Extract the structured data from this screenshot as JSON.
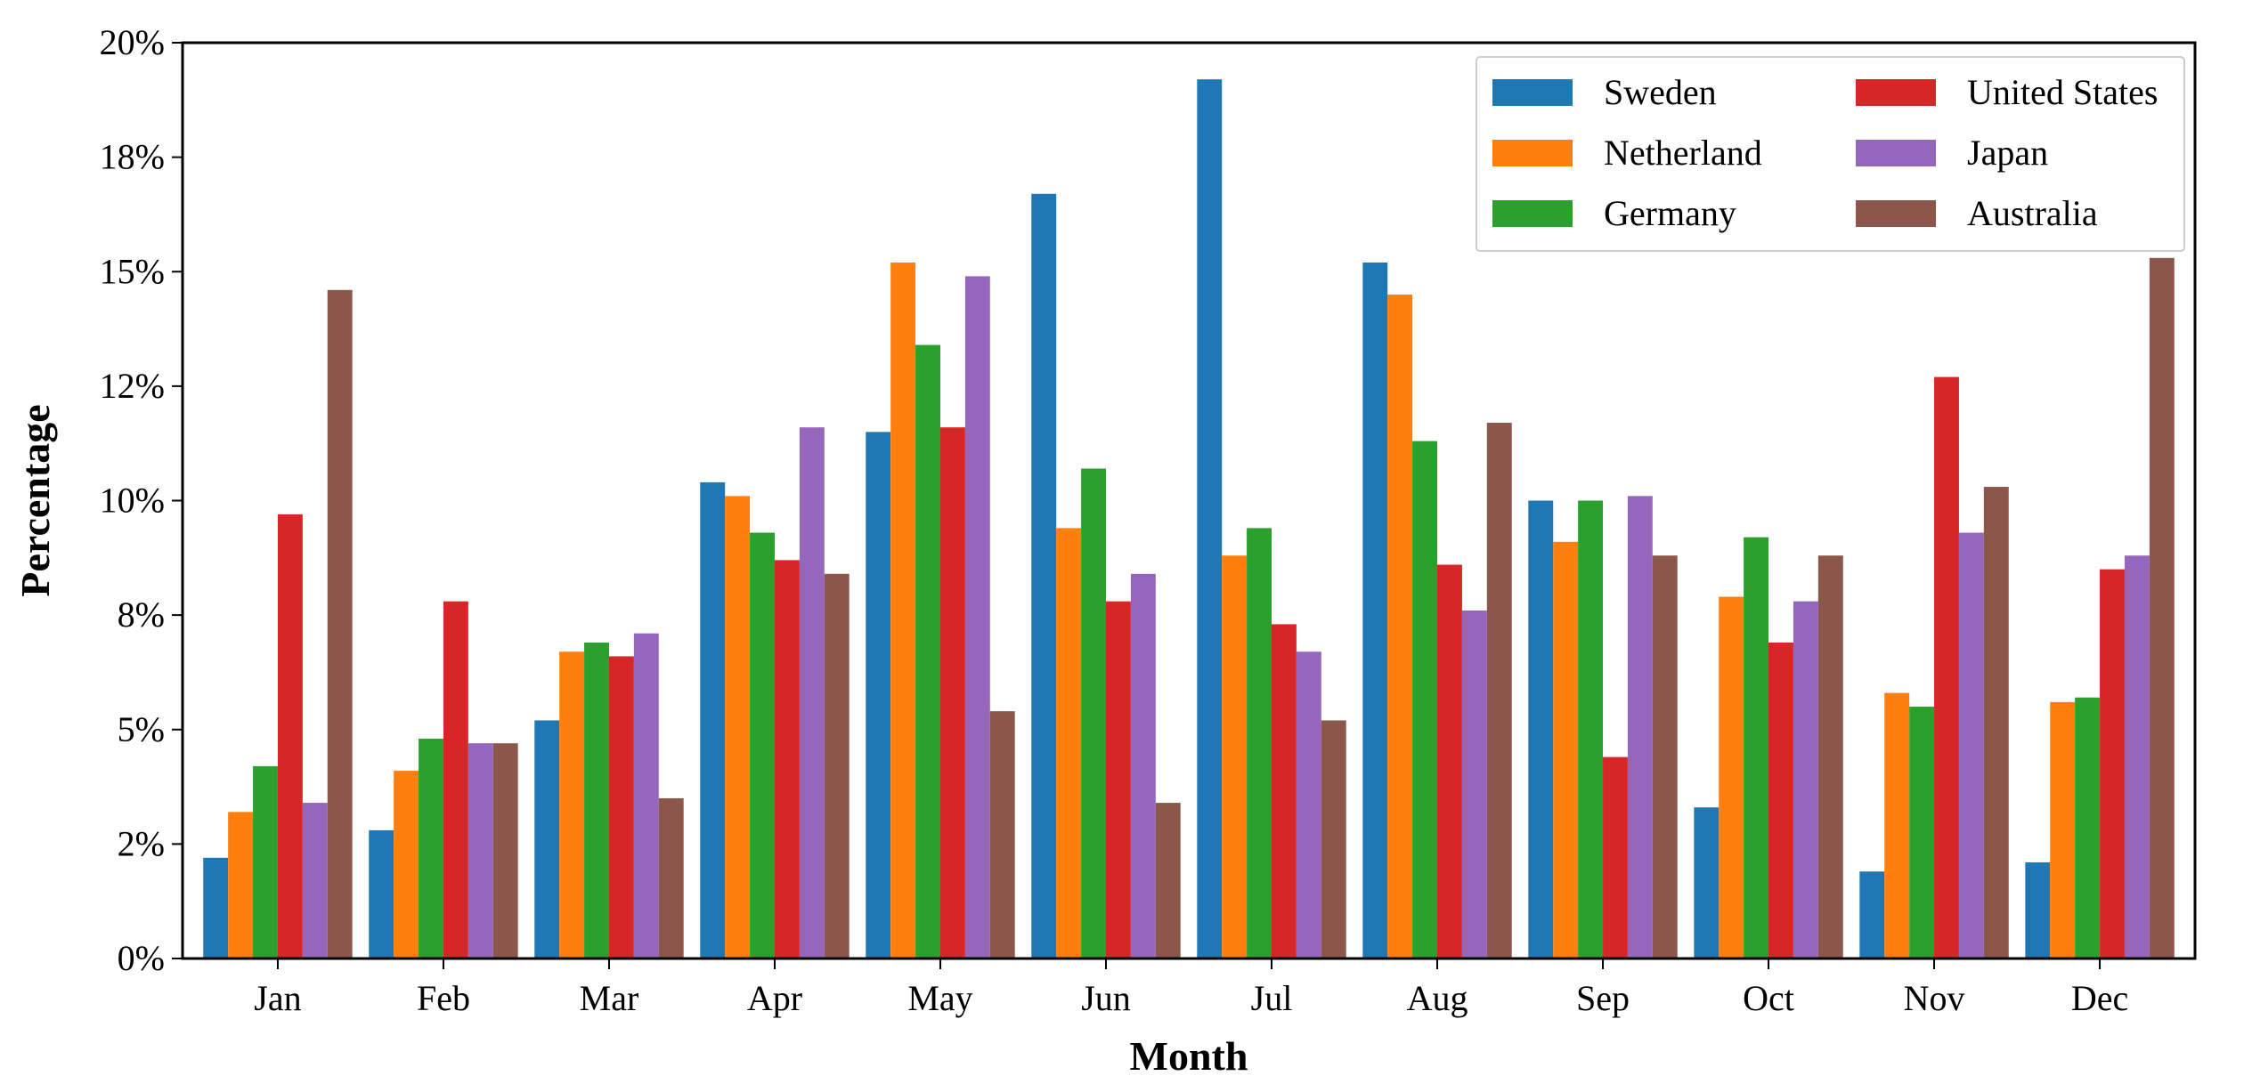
{
  "chart_data": {
    "type": "bar",
    "title": "",
    "xlabel": "Month",
    "ylabel": "Percentage",
    "ylim": [
      0,
      20
    ],
    "yticks": [
      0,
      2.5,
      5,
      7.5,
      10,
      12.5,
      15,
      17.5,
      20
    ],
    "ytick_labels": [
      "0%",
      "2%",
      "5%",
      "8%",
      "10%",
      "12%",
      "15%",
      "18%",
      "20%"
    ],
    "categories": [
      "Jan",
      "Feb",
      "Mar",
      "Apr",
      "May",
      "Jun",
      "Jul",
      "Aug",
      "Sep",
      "Oct",
      "Nov",
      "Dec"
    ],
    "legend_position": "top-right",
    "legend_columns": 2,
    "grid": false,
    "series": [
      {
        "name": "Sweden",
        "color": "#1f77b4",
        "values": [
          2.2,
          2.8,
          5.2,
          10.4,
          11.5,
          16.7,
          19.2,
          15.2,
          10.0,
          3.3,
          1.9,
          2.1
        ]
      },
      {
        "name": "Netherland",
        "color": "#ff7f0e",
        "values": [
          3.2,
          4.1,
          6.7,
          10.1,
          15.2,
          9.4,
          8.8,
          14.5,
          9.1,
          7.9,
          5.8,
          5.6
        ]
      },
      {
        "name": "Germany",
        "color": "#2ca02c",
        "values": [
          4.2,
          4.8,
          6.9,
          9.3,
          13.4,
          10.7,
          9.4,
          11.3,
          10.0,
          9.2,
          5.5,
          5.7
        ]
      },
      {
        "name": "United States",
        "color": "#d62728",
        "values": [
          9.7,
          7.8,
          6.6,
          8.7,
          11.6,
          7.8,
          7.3,
          8.6,
          4.4,
          6.9,
          12.7,
          8.5
        ]
      },
      {
        "name": "Japan",
        "color": "#9467bd",
        "values": [
          3.4,
          4.7,
          7.1,
          11.6,
          14.9,
          8.4,
          6.7,
          7.6,
          10.1,
          7.8,
          9.3,
          8.8
        ]
      },
      {
        "name": "Australia",
        "color": "#8c564b",
        "values": [
          14.6,
          4.7,
          3.5,
          8.4,
          5.4,
          3.4,
          5.2,
          11.7,
          8.8,
          8.8,
          10.3,
          15.3
        ]
      }
    ]
  }
}
